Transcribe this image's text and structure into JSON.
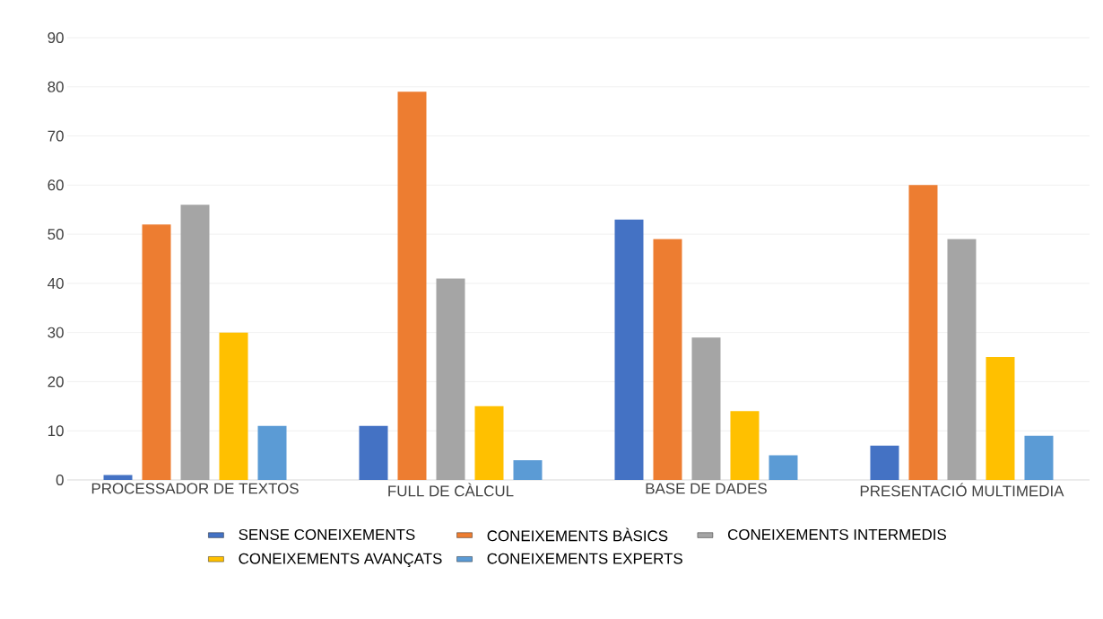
{
  "chart_data": {
    "type": "bar",
    "categories": [
      "PROCESSADOR DE TEXTOS",
      "FULL DE CÀLCUL",
      "BASE DE DADES",
      "PRESENTACIÓ MULTIMEDIA"
    ],
    "series": [
      {
        "name": "SENSE CONEIXEMENTS",
        "color": "#4472c4",
        "values": [
          1,
          11,
          53,
          7
        ]
      },
      {
        "name": "CONEIXEMENTS BÀSICS",
        "color": "#ed7d31",
        "values": [
          52,
          79,
          49,
          60
        ]
      },
      {
        "name": "CONEIXEMENTS INTERMEDIS",
        "color": "#a5a5a5",
        "values": [
          56,
          41,
          29,
          49
        ]
      },
      {
        "name": "CONEIXEMENTS AVANÇATS",
        "color": "#ffc000",
        "values": [
          30,
          15,
          14,
          25
        ]
      },
      {
        "name": "CONEIXEMENTS EXPERTS",
        "color": "#5b9bd5",
        "values": [
          11,
          4,
          5,
          9
        ]
      }
    ],
    "ylim": [
      0,
      90
    ],
    "yticks": [
      0,
      10,
      20,
      30,
      40,
      50,
      60,
      70,
      80,
      90
    ],
    "grid": "y",
    "legend": "bottom"
  }
}
